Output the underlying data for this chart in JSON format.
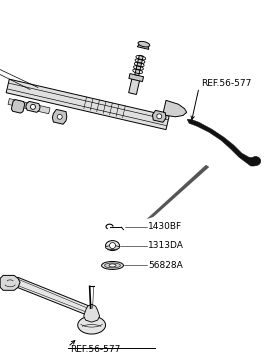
{
  "bg_color": "#ffffff",
  "line_color": "#000000",
  "dark_part": "#111111",
  "gray_light": "#e0e0e0",
  "gray_med": "#c8c8c8",
  "gray_dark": "#aaaaaa",
  "label_ref1": "REF.56-577",
  "label_1430": "1430BF",
  "label_1313": "1313DA",
  "label_5682": "56828A",
  "label_ref2": "REF.56-577",
  "font_size": 6.5,
  "fig_width": 2.65,
  "fig_height": 3.56,
  "dpi": 100
}
